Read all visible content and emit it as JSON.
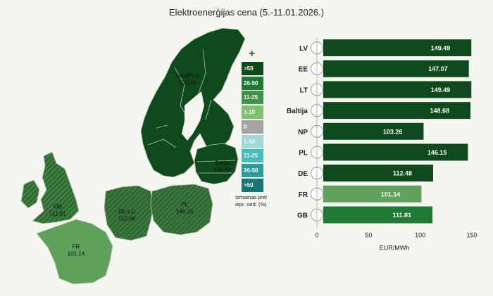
{
  "title": "Elektroenerģijas cena (5.-11.01.2026.)",
  "colors": {
    "background": "#f6f6f1",
    "dark_green": "#0f4a1d",
    "mid_green": "#1e7a35",
    "light_green": "#5fa05a",
    "grey": "#a3a3a3"
  },
  "legend": {
    "plus_symbol": "+",
    "minus_symbol": "−",
    "items": [
      {
        "label": ">50",
        "color": "#0f4a1d",
        "text_color": "#ffffff"
      },
      {
        "label": "26-50",
        "color": "#1e7a35",
        "text_color": "#ffffff"
      },
      {
        "label": "11-25",
        "color": "#3f9547",
        "text_color": "#ffffff"
      },
      {
        "label": "1-10",
        "color": "#7cc16c",
        "text_color": "#ffffff"
      },
      {
        "label": "0",
        "color": "#a3a3a3",
        "text_color": "#ffffff"
      },
      {
        "label": "1-10",
        "color": "#9fd8d6",
        "text_color": "#ffffff"
      },
      {
        "label": "11-25",
        "color": "#45bdb8",
        "text_color": "#ffffff"
      },
      {
        "label": "26-50",
        "color": "#2a9c9b",
        "text_color": "#ffffff"
      },
      {
        "label": ">50",
        "color": "#177574",
        "text_color": "#ffffff"
      }
    ],
    "caption_line1": "Izmaiņas pret",
    "caption_line2": "iepr. ned. (%)"
  },
  "map_labels": [
    {
      "id": "nordpool",
      "name": "NordPool",
      "value": "103.26"
    },
    {
      "id": "baltija",
      "name": "Baltija",
      "value": "148.68"
    },
    {
      "id": "gb",
      "name": "GB",
      "value": "111.81"
    },
    {
      "id": "deelu",
      "name": "DE-LU",
      "value": "112.48"
    },
    {
      "id": "pl",
      "name": "PL",
      "value": "146.15"
    },
    {
      "id": "fr",
      "name": "FR",
      "value": "101.14"
    }
  ],
  "chart_data": {
    "type": "bar",
    "orientation": "horizontal",
    "title": "Elektroenerģijas cena (5.-11.01.2026.)",
    "categories": [
      "LV",
      "EE",
      "LT",
      "Baltija",
      "NP",
      "PL",
      "DE",
      "FR",
      "GB"
    ],
    "values": [
      149.49,
      147.07,
      149.49,
      148.68,
      103.26,
      146.15,
      112.48,
      101.14,
      111.81
    ],
    "value_labels": [
      "149.49",
      "147.07",
      "149.49",
      "148.68",
      "103.26",
      "146.15",
      "112.48",
      "101.14",
      "111.81"
    ],
    "bar_colors": [
      "#0f4a1d",
      "#0f4a1d",
      "#0f4a1d",
      "#0f4a1d",
      "#0f4a1d",
      "#0f4a1d",
      "#0f4a1d",
      "#5fa05a",
      "#1e7a35"
    ],
    "xlabel": "EUR/MWh",
    "ylabel": "",
    "xlim": [
      0,
      150
    ],
    "x_ticks": [
      0,
      50,
      100,
      150
    ],
    "x_tick_labels": [
      "0",
      "50",
      "100",
      "150"
    ],
    "grid": false
  }
}
